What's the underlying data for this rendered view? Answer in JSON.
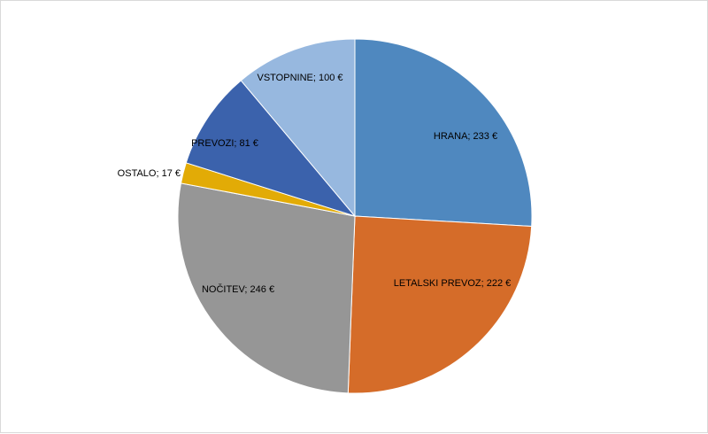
{
  "chart_data": {
    "type": "pie",
    "title": "",
    "legend": "none",
    "start_angle_deg": 0,
    "direction": "clockwise",
    "slices": [
      {
        "label": "HRANA;  233 €",
        "value": 233,
        "color": "#4f88bf"
      },
      {
        "label": "LETALSKI  PREVOZ;  222 €",
        "value": 222,
        "color": "#d56c29"
      },
      {
        "label": "NOČITEV;  246 €",
        "value": 246,
        "color": "#969696"
      },
      {
        "label": "OSTALO;  17 €",
        "value": 17,
        "color": "#e2ab06"
      },
      {
        "label": "PREVOZI;  81 €",
        "value": 81,
        "color": "#3b62ac"
      },
      {
        "label": "VSTOPNINE;  100 €",
        "value": 100,
        "color": "#97b8df"
      }
    ]
  }
}
